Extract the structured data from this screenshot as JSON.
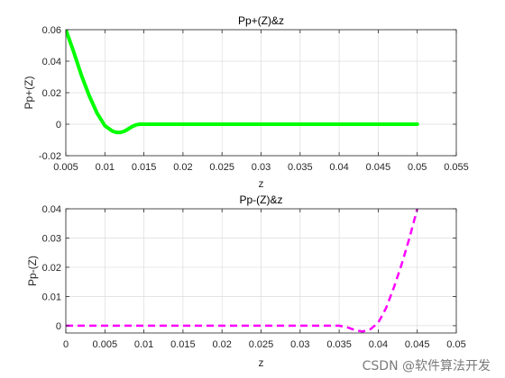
{
  "watermark": "CSDN @软件算法开发",
  "chart_data": [
    {
      "type": "line",
      "title": "Pp+(Z)&z",
      "xlabel": "z",
      "ylabel": "Pp+(Z)",
      "xlim": [
        0.005,
        0.055
      ],
      "ylim": [
        -0.02,
        0.06
      ],
      "xticks": [
        "0.005",
        "0.01",
        "0.015",
        "0.02",
        "0.025",
        "0.03",
        "0.035",
        "0.04",
        "0.045",
        "0.05",
        "0.055"
      ],
      "yticks": [
        "-0.02",
        "0",
        "0.02",
        "0.04",
        "0.06"
      ],
      "grid": true,
      "series": [
        {
          "color": "#00ff00",
          "style": "solid",
          "x": [
            0.005,
            0.006,
            0.007,
            0.008,
            0.009,
            0.01,
            0.011,
            0.0115,
            0.012,
            0.0125,
            0.013,
            0.0135,
            0.014,
            0.0145,
            0.015,
            0.02,
            0.03,
            0.04,
            0.05
          ],
          "y": [
            0.06,
            0.046,
            0.031,
            0.018,
            0.007,
            -0.001,
            -0.0045,
            -0.0052,
            -0.0052,
            -0.0045,
            -0.003,
            -0.0015,
            -0.0004,
            0,
            0,
            0,
            0,
            0,
            0
          ]
        }
      ]
    },
    {
      "type": "line",
      "title": "Pp-(Z)&z",
      "xlabel": "z",
      "ylabel": "Pp-(Z)",
      "xlim": [
        0,
        0.05
      ],
      "ylim": [
        -0.0025,
        0.04
      ],
      "xticks": [
        "0",
        "0.005",
        "0.01",
        "0.015",
        "0.02",
        "0.025",
        "0.03",
        "0.035",
        "0.04",
        "0.045",
        "0.05"
      ],
      "yticks": [
        "0",
        "0.01",
        "0.02",
        "0.03",
        "0.04"
      ],
      "grid": true,
      "series": [
        {
          "color": "#ff00ff",
          "style": "dashed",
          "x": [
            0,
            0.01,
            0.02,
            0.03,
            0.035,
            0.036,
            0.037,
            0.038,
            0.039,
            0.04,
            0.041,
            0.042,
            0.043,
            0.044,
            0.045
          ],
          "y": [
            0,
            0,
            0,
            0,
            0,
            -0.0005,
            -0.0015,
            -0.002,
            -0.0012,
            0.001,
            0.006,
            0.013,
            0.021,
            0.03,
            0.04
          ]
        }
      ]
    }
  ]
}
